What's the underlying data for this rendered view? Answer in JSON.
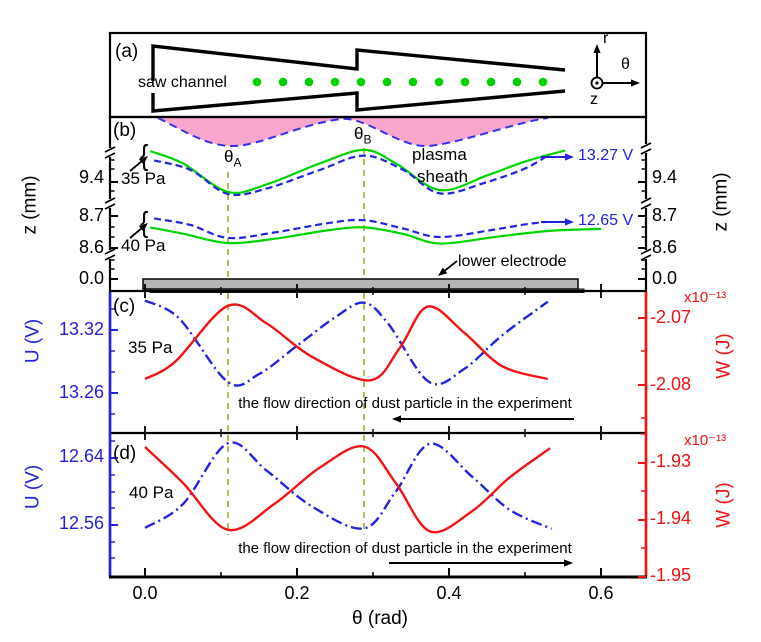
{
  "colors": {
    "blue": "#2222dd",
    "red": "#ee1111",
    "green": "#00cc00",
    "pink": "#f9a6cd",
    "olive": "#a8a832",
    "gray": "#b5b5b5",
    "black": "#000000"
  },
  "panel_a": {
    "label": "(a)",
    "saw_channel": "saw channel",
    "axis_r": "r",
    "axis_theta": "θ",
    "axis_z": "z",
    "dust_particle_count": 12
  },
  "panel_b": {
    "label": "(b)",
    "plasma": "plasma",
    "sheath": "sheath",
    "theta_a": {
      "base": "θ",
      "sub": "A"
    },
    "theta_b": {
      "base": "θ",
      "sub": "B"
    },
    "p35": "35 Pa",
    "p40": "40 Pa",
    "brace": "{",
    "v35": "13.27 V",
    "v40": "12.65 V",
    "electrode": "lower electrode",
    "axis_left": "z (mm)",
    "axis_right": "z (mm)",
    "ticks": [
      "9.4",
      "8.7",
      "8.6",
      "0.0"
    ]
  },
  "panel_c": {
    "label": "(c)",
    "pressure": "35 Pa",
    "axis_left": "U (V)",
    "axis_right": "W (J)",
    "multiplier": "x10⁻¹³",
    "u_ticks": [
      "13.32",
      "13.26"
    ],
    "w_ticks": [
      "-2.07",
      "-2.08"
    ],
    "flow_text": "the flow direction of dust particle in the experiment"
  },
  "panel_d": {
    "label": "(d)",
    "pressure": "40 Pa",
    "axis_left": "U (V)",
    "axis_right": "W (J)",
    "multiplier": "x10⁻¹³",
    "u_ticks": [
      "12.64",
      "12.56"
    ],
    "w_ticks": [
      "-1.93",
      "-1.94",
      "-1.95"
    ],
    "flow_text": "the flow direction of dust particle in the experiment"
  },
  "x_axis": {
    "label": "θ (rad)",
    "ticks": [
      "0.0",
      "0.2",
      "0.4",
      "0.6"
    ],
    "tick_values": [
      0.0,
      0.2,
      0.4,
      0.6
    ],
    "minor_tick_values": [
      0.1,
      0.3,
      0.5
    ],
    "range": [
      -0.046,
      0.66
    ]
  },
  "chart_data": [
    {
      "panel": "a",
      "type": "diagram",
      "title": "saw channel cross-section with dust particles",
      "coordinate_axes": [
        "r",
        "θ",
        "z"
      ],
      "dust_particles": 12
    },
    {
      "panel": "b",
      "type": "line",
      "xlabel": "θ (rad)",
      "ylabel": "z (mm)",
      "broken_y_ticks": [
        9.4,
        8.7,
        8.6,
        0.0
      ],
      "theta_A": 0.109,
      "theta_B": 0.288,
      "annotations": [
        "plasma",
        "sheath",
        "lower electrode",
        "13.27 V",
        "12.65 V"
      ],
      "series": [
        {
          "name": "sheath edge 35 Pa",
          "pressure": "35",
          "color": "green",
          "style": "solid",
          "points": [
            [
              0.007,
              9.503
            ],
            [
              0.05,
              9.462
            ],
            [
              0.109,
              9.367
            ],
            [
              0.16,
              9.392
            ],
            [
              0.23,
              9.462
            ],
            [
              0.288,
              9.507
            ],
            [
              0.33,
              9.462
            ],
            [
              0.388,
              9.373
            ],
            [
              0.45,
              9.422
            ],
            [
              0.5,
              9.468
            ],
            [
              0.553,
              9.505
            ]
          ]
        },
        {
          "name": "equipotential 13.27 V (35 Pa)",
          "pressure": "35",
          "color": "blue",
          "style": "dashed",
          "points": [
            [
              0.012,
              9.472
            ],
            [
              0.06,
              9.44
            ],
            [
              0.109,
              9.36
            ],
            [
              0.16,
              9.378
            ],
            [
              0.23,
              9.44
            ],
            [
              0.288,
              9.488
            ],
            [
              0.34,
              9.44
            ],
            [
              0.388,
              9.362
            ],
            [
              0.45,
              9.4
            ],
            [
              0.5,
              9.445
            ],
            [
              0.526,
              9.482
            ]
          ]
        },
        {
          "name": "sheath edge 40 Pa",
          "pressure": "40",
          "color": "green",
          "style": "solid",
          "points": [
            [
              0.007,
              8.662
            ],
            [
              0.05,
              8.641
            ],
            [
              0.109,
              8.61
            ],
            [
              0.17,
              8.624
            ],
            [
              0.24,
              8.652
            ],
            [
              0.288,
              8.662
            ],
            [
              0.34,
              8.64
            ],
            [
              0.388,
              8.608
            ],
            [
              0.46,
              8.63
            ],
            [
              0.53,
              8.65
            ],
            [
              0.6,
              8.657
            ]
          ]
        },
        {
          "name": "equipotential 12.65 V (40 Pa)",
          "pressure": "40",
          "color": "blue",
          "style": "dashed",
          "points": [
            [
              0.012,
              8.692
            ],
            [
              0.06,
              8.67
            ],
            [
              0.109,
              8.627
            ],
            [
              0.17,
              8.645
            ],
            [
              0.24,
              8.676
            ],
            [
              0.288,
              8.686
            ],
            [
              0.34,
              8.658
            ],
            [
              0.388,
              8.63
            ],
            [
              0.46,
              8.655
            ],
            [
              0.5,
              8.672
            ],
            [
              0.526,
              8.68
            ]
          ]
        }
      ]
    },
    {
      "panel": "c",
      "type": "line",
      "pressure": "35 Pa",
      "xlabel": "θ (rad)",
      "left_axis": {
        "label": "U (V)",
        "ticks": [
          13.32,
          13.26
        ]
      },
      "right_axis": {
        "label": "W (J)",
        "scale": "1e-13",
        "ticks": [
          -2.07,
          -2.08
        ]
      },
      "series": [
        {
          "name": "U",
          "axis": "left",
          "units": "V",
          "color": "blue",
          "style": "dashdot",
          "points": [
            [
              0.0,
              13.348
            ],
            [
              0.045,
              13.331
            ],
            [
              0.109,
              13.2705
            ],
            [
              0.15,
              13.278
            ],
            [
              0.2,
              13.305
            ],
            [
              0.25,
              13.332
            ],
            [
              0.288,
              13.346
            ],
            [
              0.32,
              13.326
            ],
            [
              0.374,
              13.2705
            ],
            [
              0.42,
              13.283
            ],
            [
              0.47,
              13.315
            ],
            [
              0.53,
              13.347
            ]
          ]
        },
        {
          "name": "W",
          "axis": "right",
          "units": "1e-13 J",
          "color": "red",
          "style": "solid",
          "points": [
            [
              0.0,
              -2.0791
            ],
            [
              0.04,
              -2.0765
            ],
            [
              0.109,
              -2.0682
            ],
            [
              0.16,
              -2.0708
            ],
            [
              0.22,
              -2.0758
            ],
            [
              0.296,
              -2.0793
            ],
            [
              0.335,
              -2.0745
            ],
            [
              0.372,
              -2.0683
            ],
            [
              0.42,
              -2.0722
            ],
            [
              0.47,
              -2.0772
            ],
            [
              0.53,
              -2.0791
            ]
          ]
        }
      ]
    },
    {
      "panel": "d",
      "type": "line",
      "pressure": "40 Pa",
      "xlabel": "θ (rad)",
      "left_axis": {
        "label": "U (V)",
        "ticks": [
          12.64,
          12.56
        ]
      },
      "right_axis": {
        "label": "W (J)",
        "scale": "1e-13",
        "ticks": [
          -1.93,
          -1.94,
          -1.95
        ]
      },
      "series": [
        {
          "name": "U",
          "axis": "left",
          "units": "V",
          "color": "blue",
          "style": "dashdot",
          "points": [
            [
              0.0,
              12.5565
            ],
            [
              0.05,
              12.585
            ],
            [
              0.109,
              12.6575
            ],
            [
              0.16,
              12.625
            ],
            [
              0.22,
              12.582
            ],
            [
              0.288,
              12.556
            ],
            [
              0.33,
              12.6
            ],
            [
              0.375,
              12.657
            ],
            [
              0.43,
              12.618
            ],
            [
              0.48,
              12.578
            ],
            [
              0.535,
              12.5555
            ]
          ]
        },
        {
          "name": "W",
          "axis": "right",
          "units": "1e-13 J",
          "color": "red",
          "style": "solid",
          "points": [
            [
              0.0,
              -1.9272
            ],
            [
              0.05,
              -1.9335
            ],
            [
              0.109,
              -1.9417
            ],
            [
              0.17,
              -1.9372
            ],
            [
              0.23,
              -1.9308
            ],
            [
              0.288,
              -1.9271
            ],
            [
              0.33,
              -1.9335
            ],
            [
              0.375,
              -1.942
            ],
            [
              0.43,
              -1.9385
            ],
            [
              0.48,
              -1.9325
            ],
            [
              0.533,
              -1.9274
            ]
          ]
        }
      ]
    }
  ]
}
